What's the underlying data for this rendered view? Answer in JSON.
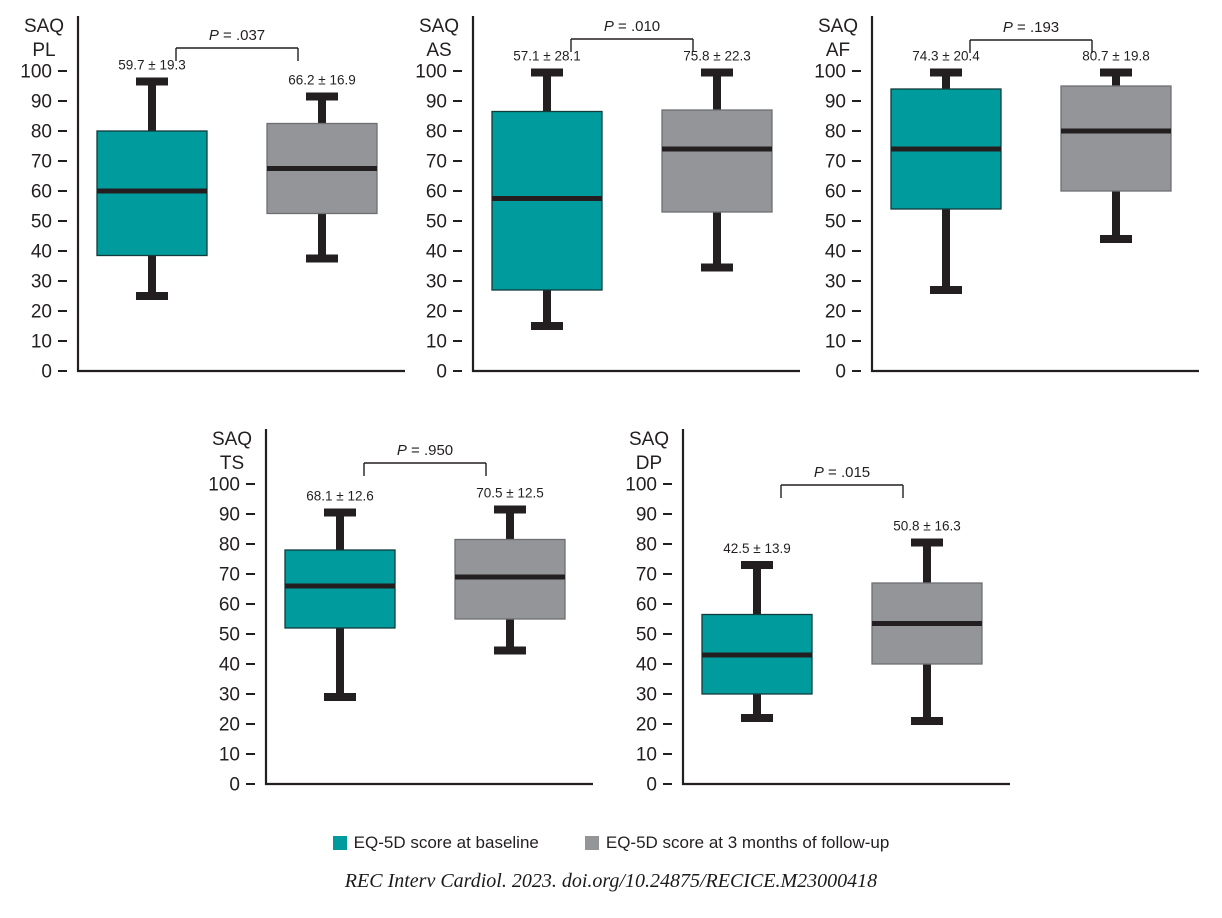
{
  "page": {
    "background": "#ffffff"
  },
  "legend": {
    "items": [
      {
        "label": "EQ-5D score at baseline",
        "color_key": "baseline"
      },
      {
        "label": "EQ-5D score at 3 months of follow-up",
        "color_key": "followup"
      }
    ]
  },
  "citation": "REC Interv Cardiol. 2023. doi.org/10.24875/RECICE.M23000418",
  "chart_data": {
    "type": "boxplot",
    "series": [
      "EQ-5D score at baseline",
      "EQ-5D score at 3 months of follow-up"
    ],
    "colors": {
      "baseline": "#009C9D",
      "followup": "#939598",
      "line": "#231F20"
    },
    "axis": {
      "ylim": [
        0,
        100
      ],
      "ytick_step": 10,
      "grid": false
    },
    "layout": {
      "legend_position": "bottom-center"
    },
    "charts": [
      {
        "id": "saq-pl",
        "title_lines": [
          "SAQ",
          "PL"
        ],
        "p_value": ".037",
        "bracket_y": 48,
        "boxes": [
          {
            "series": "baseline",
            "mean_sd": "59.7 ± 19.3",
            "whisker_min": 25,
            "q1": 38.5,
            "median": 60,
            "q3": 80,
            "whisker_max": 96.5
          },
          {
            "series": "follow-up",
            "mean_sd": "66.2 ± 16.9",
            "whisker_min": 37.5,
            "q1": 52.5,
            "median": 67.5,
            "q3": 82.5,
            "whisker_max": 91.5
          }
        ]
      },
      {
        "id": "saq-as",
        "title_lines": [
          "SAQ",
          "AS"
        ],
        "p_value": ".010",
        "bracket_y": 39,
        "boxes": [
          {
            "series": "baseline",
            "mean_sd": "57.1 ± 28.1",
            "whisker_min": 15,
            "q1": 27,
            "median": 57.5,
            "q3": 86.5,
            "whisker_max": 99.5
          },
          {
            "series": "follow-up",
            "mean_sd": "75.8 ± 22.3",
            "whisker_min": 34.5,
            "q1": 53,
            "median": 74,
            "q3": 87,
            "whisker_max": 99.5
          }
        ]
      },
      {
        "id": "saq-af",
        "title_lines": [
          "SAQ",
          "AF"
        ],
        "p_value": ".193",
        "bracket_y": 40,
        "boxes": [
          {
            "series": "baseline",
            "mean_sd": "74.3 ± 20.4",
            "whisker_min": 27,
            "q1": 54,
            "median": 74,
            "q3": 94,
            "whisker_max": 99.5
          },
          {
            "series": "follow-up",
            "mean_sd": "80.7 ± 19.8",
            "whisker_min": 44,
            "q1": 60,
            "median": 80,
            "q3": 95,
            "whisker_max": 99.5
          }
        ]
      },
      {
        "id": "saq-ts",
        "title_lines": [
          "SAQ",
          "TS"
        ],
        "p_value": ".950",
        "bracket_y": 50,
        "boxes": [
          {
            "series": "baseline",
            "mean_sd": "68.1 ± 12.6",
            "whisker_min": 29,
            "q1": 52,
            "median": 66,
            "q3": 78,
            "whisker_max": 90.5
          },
          {
            "series": "follow-up",
            "mean_sd": "70.5 ± 12.5",
            "whisker_min": 44.5,
            "q1": 55,
            "median": 69,
            "q3": 81.5,
            "whisker_max": 91.5
          }
        ]
      },
      {
        "id": "saq-dp",
        "title_lines": [
          "SAQ",
          "DP"
        ],
        "p_value": ".015",
        "bracket_y": 72,
        "boxes": [
          {
            "series": "baseline",
            "mean_sd": "42.5 ± 13.9",
            "whisker_min": 22,
            "q1": 30,
            "median": 43,
            "q3": 56.5,
            "whisker_max": 73
          },
          {
            "series": "follow-up",
            "mean_sd": "50.8 ± 16.3",
            "whisker_min": 21,
            "q1": 40,
            "median": 53.5,
            "q3": 67,
            "whisker_max": 80.5
          }
        ]
      }
    ]
  }
}
